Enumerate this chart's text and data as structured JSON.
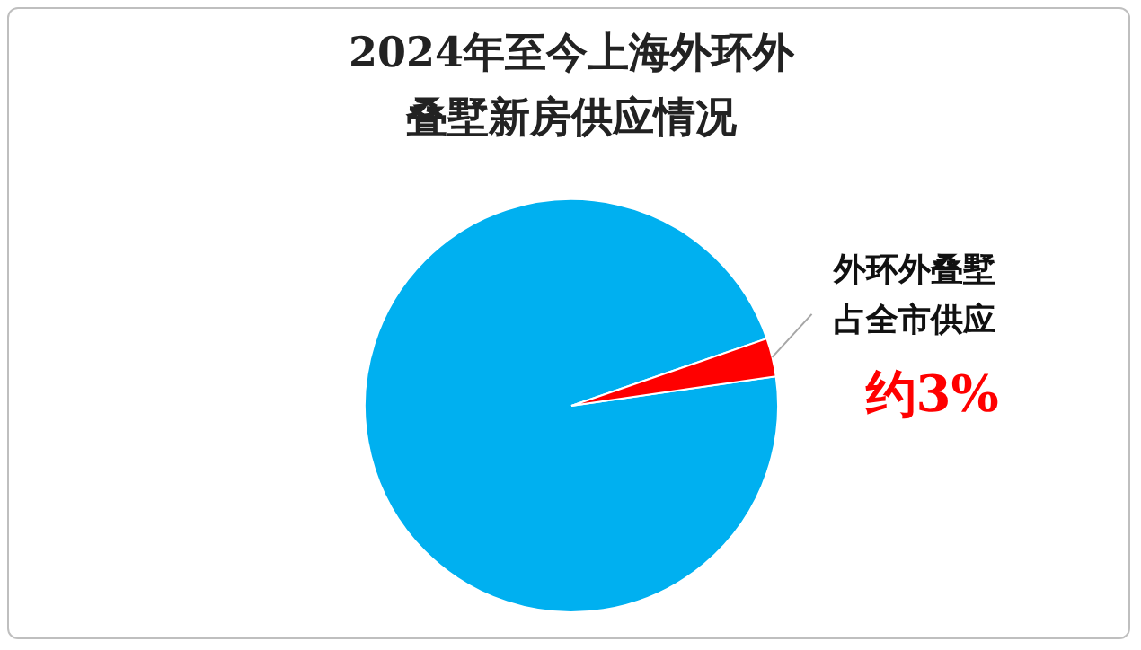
{
  "chart_data": {
    "type": "pie",
    "title": "2024年至今上海外环外叠墅新房供应情况",
    "categories": [
      null,
      "外环外叠墅占全市供应"
    ],
    "values": [
      97,
      3
    ],
    "colors": [
      "#00b0f0",
      "#ff0000"
    ],
    "value_labels": [
      null,
      "约3%"
    ]
  }
}
